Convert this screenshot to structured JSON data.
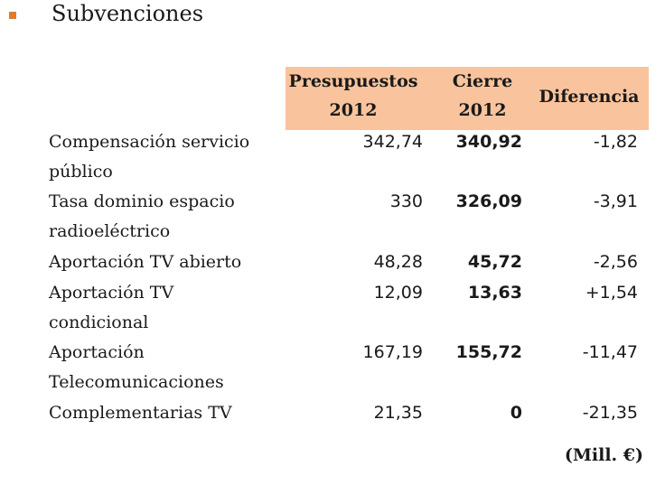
{
  "title": "Subvenciones",
  "headers": {
    "presupuestos": [
      "Presupuestos",
      "2012"
    ],
    "cierre": [
      "Cierre",
      "2012"
    ],
    "diferencia": "Diferencia"
  },
  "rows": [
    {
      "label": [
        "Compensación servicio",
        "público"
      ],
      "presupuestos": "342,74",
      "cierre": "340,92",
      "diferencia": "-1,82"
    },
    {
      "label": [
        "Tasa dominio espacio",
        "radioeléctrico"
      ],
      "presupuestos": "330",
      "cierre": "326,09",
      "diferencia": "-3,91"
    },
    {
      "label": [
        "Aportación TV abierto"
      ],
      "presupuestos": "48,28",
      "cierre": "45,72",
      "diferencia": "-2,56"
    },
    {
      "label": [
        "Aportación TV",
        "condicional"
      ],
      "presupuestos": "12,09",
      "cierre": "13,63",
      "diferencia": "+1,54"
    },
    {
      "label": [
        "Aportación",
        "Telecomunicaciones"
      ],
      "presupuestos": "167,19",
      "cierre": "155,72",
      "diferencia": "-11,47"
    },
    {
      "label": [
        "Complementarias TV"
      ],
      "presupuestos": "21,35",
      "cierre": "0",
      "diferencia": "-21,35"
    }
  ],
  "unit": "(Mill. €)",
  "colors": {
    "bullet": "#e07a2e",
    "header_bg": "#f9c49d"
  }
}
